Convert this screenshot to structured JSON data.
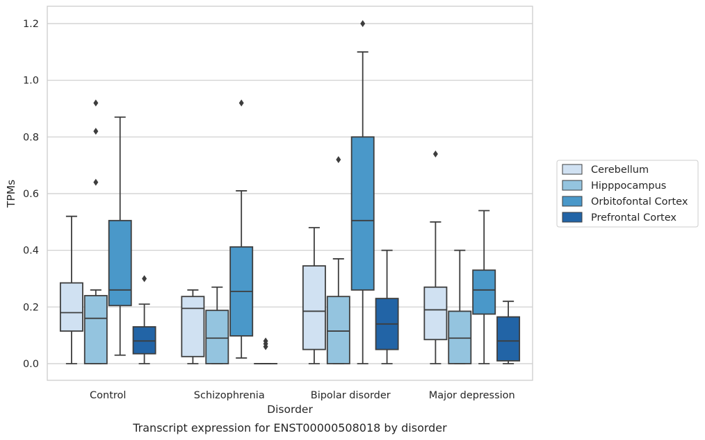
{
  "chart_data": {
    "type": "box",
    "xlabel": "Disorder",
    "ylabel": "TPMs",
    "caption": "Transcript expression for ENST00000508018 by disorder",
    "ylim": [
      -0.06,
      1.26
    ],
    "yticks": [
      "0.0",
      "0.2",
      "0.4",
      "0.6",
      "0.8",
      "1.0",
      "1.2"
    ],
    "grid": "horizontal",
    "legend_position": "right",
    "categories": [
      "Control",
      "Schizophrenia",
      "Bipolar disorder",
      "Major depression"
    ],
    "series": [
      {
        "name": "Cerebellum",
        "color": "#d0e1f2",
        "boxes": [
          {
            "whislo": 0.0,
            "q1": 0.115,
            "med": 0.18,
            "q3": 0.285,
            "whishi": 0.52,
            "fliers": []
          },
          {
            "whislo": 0.0,
            "q1": 0.025,
            "med": 0.195,
            "q3": 0.237,
            "whishi": 0.26,
            "fliers": []
          },
          {
            "whislo": 0.0,
            "q1": 0.05,
            "med": 0.185,
            "q3": 0.345,
            "whishi": 0.48,
            "fliers": []
          },
          {
            "whislo": 0.0,
            "q1": 0.085,
            "med": 0.19,
            "q3": 0.27,
            "whishi": 0.5,
            "fliers": [
              0.74
            ]
          }
        ]
      },
      {
        "name": "Hipppocampus",
        "color": "#94c4df",
        "boxes": [
          {
            "whislo": 0.0,
            "q1": 0.0,
            "med": 0.16,
            "q3": 0.24,
            "whishi": 0.26,
            "fliers": [
              0.64,
              0.82,
              0.92
            ]
          },
          {
            "whislo": 0.0,
            "q1": 0.0,
            "med": 0.09,
            "q3": 0.188,
            "whishi": 0.27,
            "fliers": []
          },
          {
            "whislo": 0.0,
            "q1": 0.0,
            "med": 0.115,
            "q3": 0.237,
            "whishi": 0.37,
            "fliers": [
              0.72
            ]
          },
          {
            "whislo": 0.0,
            "q1": 0.0,
            "med": 0.09,
            "q3": 0.185,
            "whishi": 0.4,
            "fliers": []
          }
        ]
      },
      {
        "name": "Orbitofontal Cortex",
        "color": "#4a98c9",
        "boxes": [
          {
            "whislo": 0.03,
            "q1": 0.205,
            "med": 0.26,
            "q3": 0.505,
            "whishi": 0.87,
            "fliers": []
          },
          {
            "whislo": 0.02,
            "q1": 0.098,
            "med": 0.255,
            "q3": 0.412,
            "whishi": 0.61,
            "fliers": [
              0.92
            ]
          },
          {
            "whislo": 0.0,
            "q1": 0.26,
            "med": 0.505,
            "q3": 0.8,
            "whishi": 1.1,
            "fliers": [
              1.2
            ]
          },
          {
            "whislo": 0.0,
            "q1": 0.175,
            "med": 0.26,
            "q3": 0.33,
            "whishi": 0.54,
            "fliers": []
          }
        ]
      },
      {
        "name": "Prefrontal Cortex",
        "color": "#2264a6",
        "boxes": [
          {
            "whislo": 0.0,
            "q1": 0.035,
            "med": 0.08,
            "q3": 0.13,
            "whishi": 0.21,
            "fliers": [
              0.3
            ]
          },
          {
            "whislo": 0.0,
            "q1": 0.0,
            "med": 0.0,
            "q3": 0.0,
            "whishi": 0.0,
            "fliers": [
              0.06,
              0.07,
              0.08
            ]
          },
          {
            "whislo": 0.0,
            "q1": 0.05,
            "med": 0.14,
            "q3": 0.23,
            "whishi": 0.4,
            "fliers": []
          },
          {
            "whislo": 0.0,
            "q1": 0.01,
            "med": 0.08,
            "q3": 0.165,
            "whishi": 0.22,
            "fliers": []
          }
        ]
      }
    ]
  }
}
